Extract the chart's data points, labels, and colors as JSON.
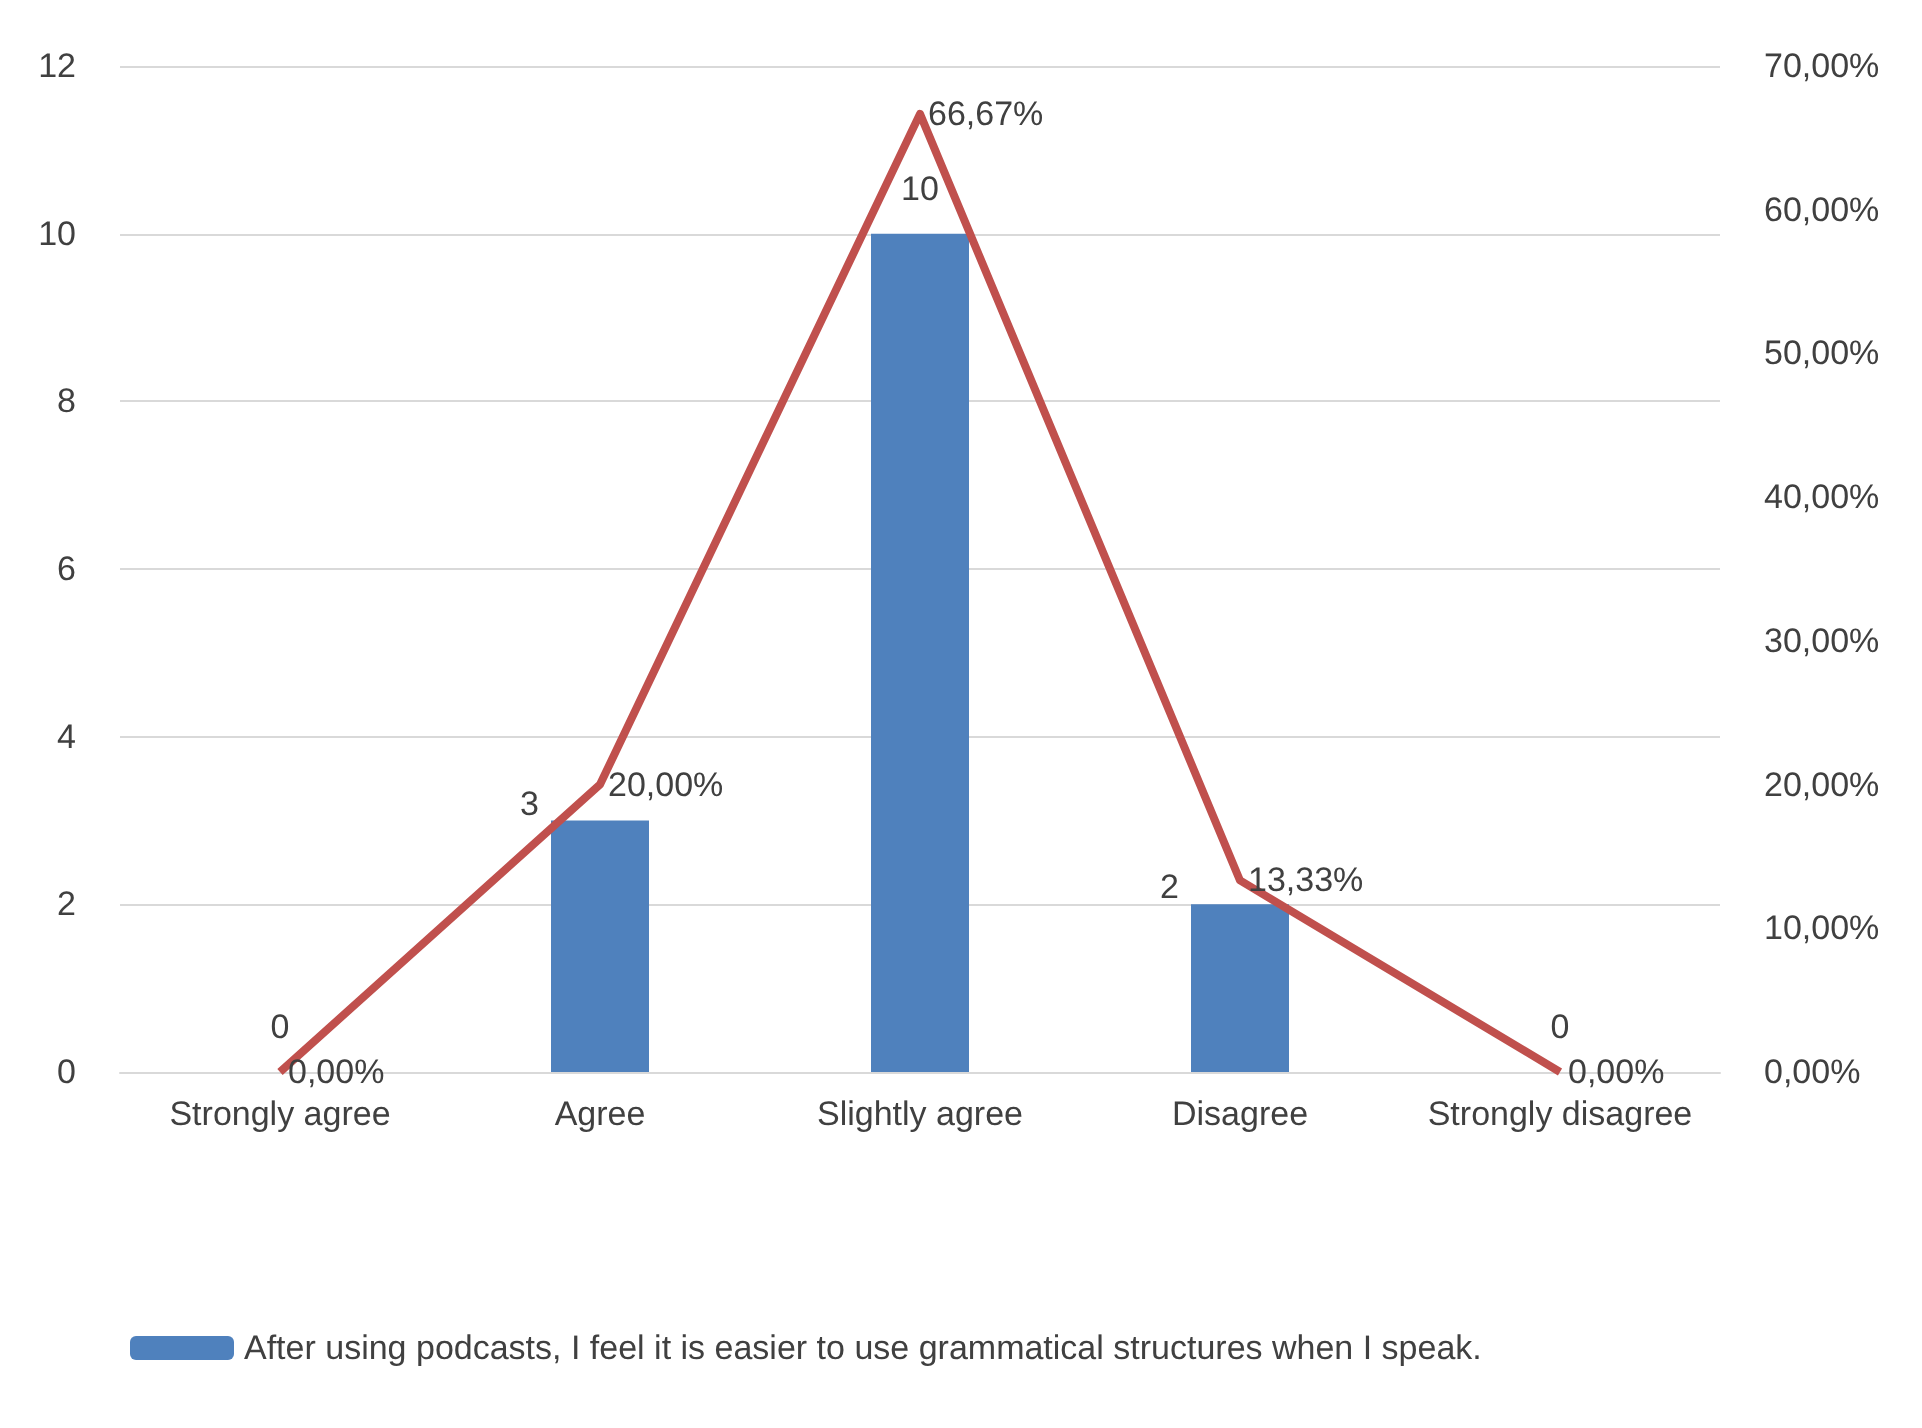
{
  "chart_data": {
    "type": "bar",
    "categories": [
      "Strongly agree",
      "Agree",
      "Slightly agree",
      "Disagree",
      "Strongly disagree"
    ],
    "series": [
      {
        "name": "After using podcasts, I feel it is easier to use grammatical structures when I speak.",
        "color": "#4f81bd",
        "values": [
          0,
          3,
          10,
          2,
          0
        ],
        "value_labels": [
          "0",
          "3",
          "10",
          "2",
          "0"
        ]
      },
      {
        "type": "line",
        "axis": "y2",
        "color": "#c0504d",
        "values": [
          0,
          20,
          66.67,
          13.33,
          0
        ],
        "value_labels": [
          "0,00%",
          "20,00%",
          "66,67%",
          "13,33%",
          "0,00%"
        ]
      }
    ],
    "ylim": [
      0,
      12
    ],
    "yticks": [
      0,
      2,
      4,
      6,
      8,
      10,
      12
    ],
    "y2lim": [
      0,
      70
    ],
    "y2ticks": [
      {
        "value": 0,
        "label": "0,00%"
      },
      {
        "value": 10,
        "label": "10,00%"
      },
      {
        "value": 20,
        "label": "20,00%"
      },
      {
        "value": 30,
        "label": "30,00%"
      },
      {
        "value": 40,
        "label": "40,00%"
      },
      {
        "value": 50,
        "label": "50,00%"
      },
      {
        "value": 60,
        "label": "60,00%"
      },
      {
        "value": 70,
        "label": "70,00%"
      }
    ],
    "grid": "y",
    "legend": "bottom",
    "marker": "none",
    "line_style": "solid"
  }
}
